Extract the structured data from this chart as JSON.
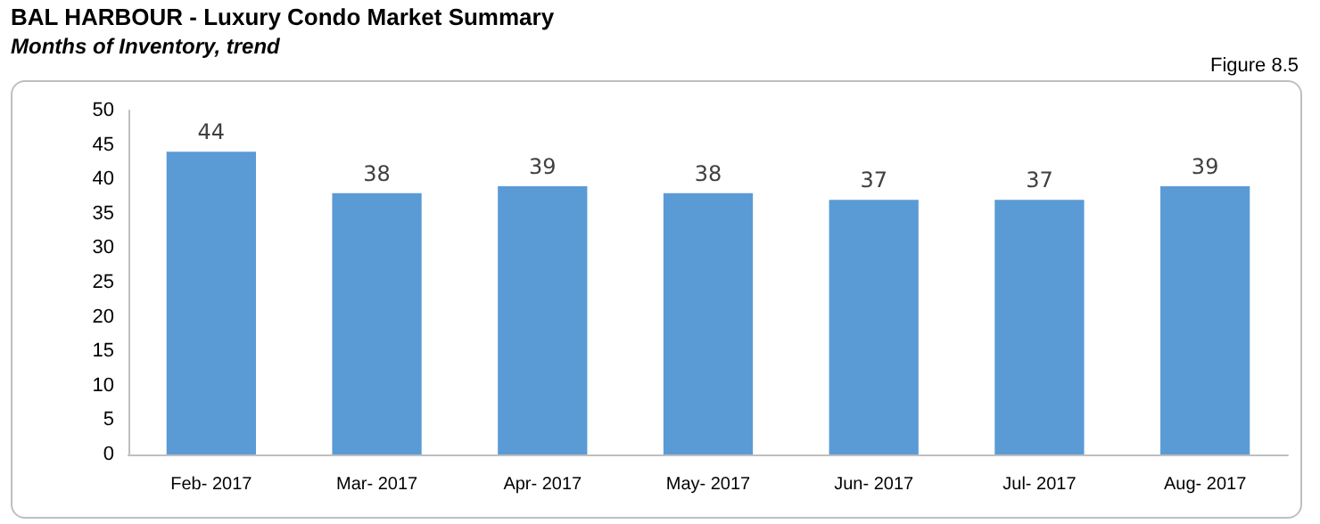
{
  "chart_data": {
    "type": "bar",
    "title": "BAL HARBOUR - Luxury Condo Market Summary",
    "subtitle": "Months of Inventory, trend",
    "annotations": [
      "Figure 8.5"
    ],
    "categories": [
      "Feb- 2017",
      "Mar- 2017",
      "Apr- 2017",
      "May- 2017",
      "Jun- 2017",
      "Jul- 2017",
      "Aug- 2017"
    ],
    "values": [
      44,
      38,
      39,
      38,
      37,
      37,
      39
    ],
    "color": "#5b9bd5",
    "ylim": [
      0,
      50
    ],
    "yticks": [
      0,
      5,
      10,
      15,
      20,
      25,
      30,
      35,
      40,
      45,
      50
    ],
    "grid": false,
    "data_labels": true
  }
}
